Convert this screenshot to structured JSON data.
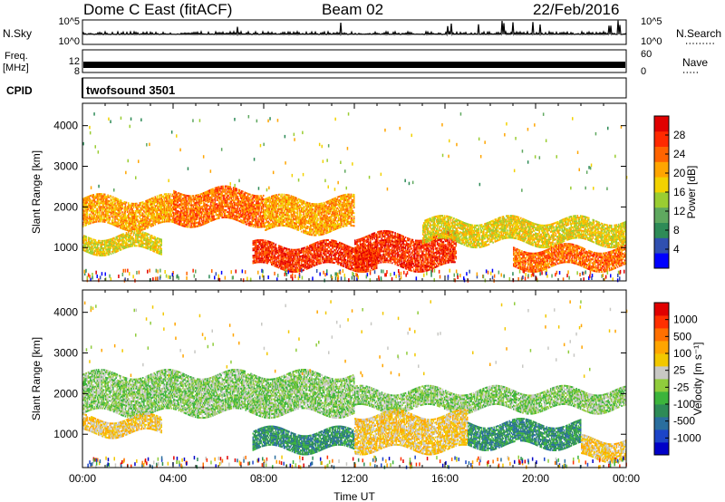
{
  "header": {
    "title": "Dome C East (fitACF)",
    "beam": "Beam 02",
    "date": "22/Feb/2016"
  },
  "top_panels": {
    "nsky_label": "N.Sky",
    "nsky_ticks": [
      "10^5",
      "10^0"
    ],
    "nsearch_label": "N.Search",
    "nsearch_ticks": [
      "10^5",
      "10^0"
    ],
    "freq_label_line1": "Freq.",
    "freq_label_line2": "[MHz]",
    "freq_ticks": [
      "12",
      "8"
    ],
    "nave_label": "Nave",
    "nave_ticks": [
      "60",
      "0"
    ],
    "cpid_label": "CPID",
    "cpid_value": "twofsound 3501"
  },
  "colors": {
    "power": [
      "#0000ff",
      "#3050b0",
      "#2e8b57",
      "#5fa85f",
      "#9acd32",
      "#f2d200",
      "#ffa500",
      "#ff6400",
      "#ff2a00",
      "#e00000"
    ],
    "velocity": [
      "#e00000",
      "#ff3000",
      "#ff7000",
      "#ffa500",
      "#f2c800",
      "#c8c8c4",
      "#90cc3c",
      "#3cb43c",
      "#2e8b57",
      "#2a6e9e",
      "#1c44c8",
      "#0000c8"
    ]
  },
  "chart_data": [
    {
      "type": "heatmap",
      "name": "power",
      "x": [
        "00:00",
        "04:00",
        "08:00",
        "12:00",
        "16:00",
        "20:00",
        "00:00"
      ],
      "ylabel": "Slant Range [km]",
      "ylim": [
        180,
        4550
      ],
      "yticks": [
        1000,
        2000,
        3000,
        4000
      ],
      "colorbar": {
        "label": "Power [dB]",
        "ticks": [
          "28",
          "24",
          "20",
          "16",
          "12",
          "8",
          "4"
        ],
        "range": [
          0,
          30
        ]
      },
      "bands": [
        {
          "t": [
            0.0,
            4.0
          ],
          "r": [
            1500,
            2200
          ],
          "level": "20"
        },
        {
          "t": [
            4.0,
            8.0
          ],
          "r": [
            1600,
            2400
          ],
          "level": "24"
        },
        {
          "t": [
            8.0,
            12.0
          ],
          "r": [
            1400,
            2200
          ],
          "level": "20"
        },
        {
          "t": [
            0.0,
            3.5
          ],
          "r": [
            900,
            1300
          ],
          "level": "16"
        },
        {
          "t": [
            7.5,
            13.0
          ],
          "r": [
            500,
            1100
          ],
          "level": "28"
        },
        {
          "t": [
            12.0,
            16.5
          ],
          "r": [
            500,
            1300
          ],
          "level": "28"
        },
        {
          "t": [
            15.0,
            24.0
          ],
          "r": [
            1100,
            1700
          ],
          "level": "16"
        },
        {
          "t": [
            19.0,
            24.0
          ],
          "r": [
            500,
            1000
          ],
          "level": "24"
        }
      ]
    },
    {
      "type": "heatmap",
      "name": "velocity",
      "x": [
        "00:00",
        "04:00",
        "08:00",
        "12:00",
        "16:00",
        "20:00",
        "00:00"
      ],
      "xlabel": "Time UT",
      "ylabel": "Slant Range [km]",
      "ylim": [
        180,
        4550
      ],
      "yticks": [
        1000,
        2000,
        3000,
        4000
      ],
      "colorbar": {
        "label": "Velocity [m s⁻¹]",
        "ticks": [
          "1000",
          "500",
          "100",
          "25",
          "-25",
          "-100",
          "-500",
          "-1000"
        ],
        "range": [
          -1000,
          1000
        ]
      },
      "bands": [
        {
          "t": [
            0.0,
            12.0
          ],
          "r": [
            1500,
            2500
          ],
          "level": "0"
        },
        {
          "t": [
            12.0,
            24.0
          ],
          "r": [
            1600,
            2100
          ],
          "level": "0"
        },
        {
          "t": [
            0.0,
            3.5
          ],
          "r": [
            1000,
            1400
          ],
          "level": "100"
        },
        {
          "t": [
            7.5,
            12.0
          ],
          "r": [
            600,
            1100
          ],
          "level": "-100"
        },
        {
          "t": [
            12.0,
            17.0
          ],
          "r": [
            600,
            1500
          ],
          "level": "100"
        },
        {
          "t": [
            17.0,
            22.0
          ],
          "r": [
            700,
            1300
          ],
          "level": "-100"
        },
        {
          "t": [
            22.0,
            24.0
          ],
          "r": [
            400,
            900
          ],
          "level": "100"
        }
      ]
    }
  ]
}
